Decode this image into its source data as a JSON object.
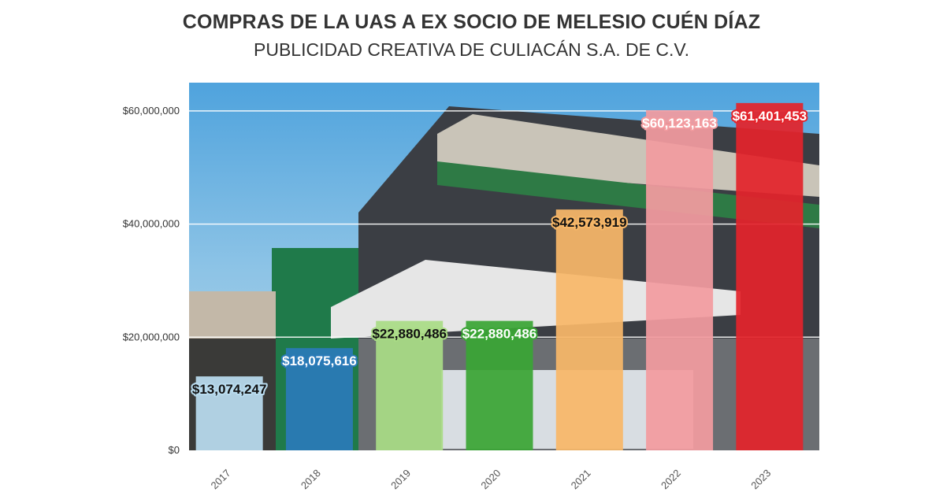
{
  "chart_data": {
    "type": "bar",
    "title": "COMPRAS DE LA UAS A EX SOCIO DE MELESIO CUÉN DÍAZ",
    "subtitle": "PUBLICIDAD CREATIVA DE CULIACÁN S.A. DE C.V.",
    "xlabel": "",
    "ylabel": "",
    "categories": [
      "2017",
      "2018",
      "2019",
      "2020",
      "2021",
      "2022",
      "2023"
    ],
    "values": [
      13074247,
      18075616,
      22880486,
      22880486,
      42573919,
      60123163,
      61401453
    ],
    "data_labels": [
      "$13,074,247",
      "$18,075,616",
      "$22,880,486",
      "$22,880,486",
      "$42,573,919",
      "$60,123,163",
      "$61,401,453"
    ],
    "bar_colors": [
      "#b9dcef",
      "#2a7ab8",
      "#a9db85",
      "#3aa535",
      "#f7b768",
      "#f29b9f",
      "#e3242b"
    ],
    "label_text_colors": [
      "#111111",
      "#ffffff",
      "#111111",
      "#ffffff",
      "#111111",
      "#ffffff",
      "#ffffff"
    ],
    "yticks": [
      0,
      20000000,
      40000000,
      60000000
    ],
    "ytick_labels": [
      "$0",
      "$20,000,000",
      "$40,000,000",
      "$60,000,000"
    ],
    "ylim": [
      0,
      65000000
    ],
    "grid": true,
    "background": "photo of storefront building (Papelería) behind bars"
  }
}
